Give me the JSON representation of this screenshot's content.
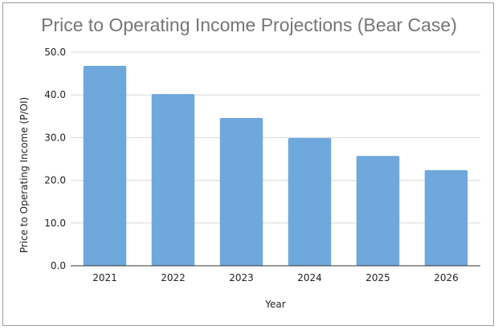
{
  "chart_data": {
    "type": "bar",
    "title": "Price to Operating Income Projections (Bear Case)",
    "xlabel": "Year",
    "ylabel": "Price to Operating Income (P/OI)",
    "categories": [
      "2021",
      "2022",
      "2023",
      "2024",
      "2025",
      "2026"
    ],
    "values": [
      46.8,
      40.2,
      34.6,
      29.9,
      25.7,
      22.4
    ],
    "ylim": [
      0,
      50
    ],
    "yticks": [
      "0.0",
      "10.0",
      "20.0",
      "30.0",
      "40.0",
      "50.0"
    ],
    "grid": true,
    "legend": "none",
    "bar_color": "#6fa8dc"
  }
}
